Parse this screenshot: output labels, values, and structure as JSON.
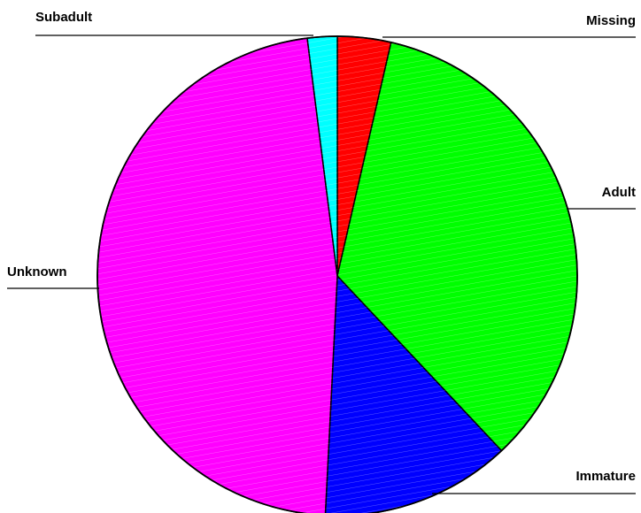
{
  "chart_data": {
    "type": "pie",
    "title": "",
    "slices": [
      {
        "label": "Missing",
        "value": 3.6,
        "color": "#ff0000"
      },
      {
        "label": "Adult",
        "value": 34.4,
        "color": "#00ff00"
      },
      {
        "label": "Immature",
        "value": 12.8,
        "color": "#0000ff"
      },
      {
        "label": "Unknown",
        "value": 47.2,
        "color": "#ff00ff"
      },
      {
        "label": "Subadult",
        "value": 2.0,
        "color": "#00ffff"
      }
    ],
    "start": "12 o'clock",
    "direction": "clockwise",
    "legend": "none"
  }
}
